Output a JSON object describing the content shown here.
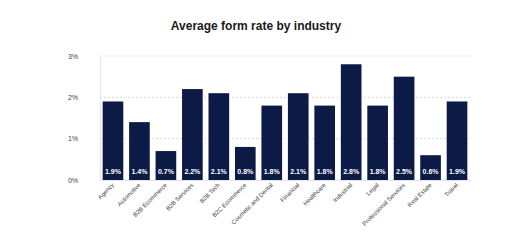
{
  "chart_data": {
    "type": "bar",
    "title": "Average form rate by industry",
    "categories": [
      "Agency",
      "Automotive",
      "B2B Ecommerce",
      "B2B Services",
      "B2B Tech",
      "B2C Ecommerce",
      "Cosmetic and Dental",
      "Financial",
      "Healthcare",
      "Industrial",
      "Legal",
      "Professional Services",
      "Real Estate",
      "Travel"
    ],
    "values": [
      1.9,
      1.4,
      0.7,
      2.2,
      2.1,
      0.8,
      1.8,
      2.1,
      1.8,
      2.8,
      1.8,
      2.5,
      0.6,
      1.9
    ],
    "value_labels": [
      "1.9%",
      "1.4%",
      "0.7%",
      "2.2%",
      "2.1%",
      "0.8%",
      "1.8%",
      "2.1%",
      "1.8%",
      "2.8%",
      "1.8%",
      "2.5%",
      "0.6%",
      "1.9%"
    ],
    "color": "#0c1a46",
    "ylim": [
      0,
      3
    ],
    "yticks": [
      {
        "value": 0,
        "label": "0%"
      },
      {
        "value": 1,
        "label": "1%"
      },
      {
        "value": 2,
        "label": "2%"
      },
      {
        "value": 3,
        "label": "3%"
      }
    ],
    "grid": true,
    "data_labels": true
  }
}
